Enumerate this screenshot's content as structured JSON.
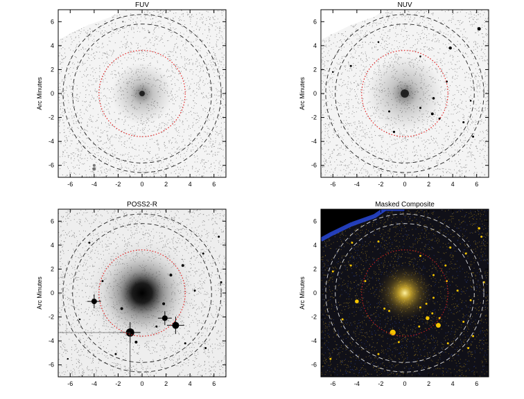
{
  "chart_data": [
    {
      "type": "image",
      "title": "FUV",
      "ylabel": "Arc Minutes",
      "xlabel": "",
      "xlim": [
        -7,
        7
      ],
      "ylim": [
        -7,
        7
      ],
      "xticks": [
        "-6",
        "-4",
        "-2",
        "0",
        "2",
        "4",
        "6"
      ],
      "yticks": [
        "-6",
        "-4",
        "-2",
        "0",
        "2",
        "4",
        "6"
      ],
      "circle_radii_arcmin": {
        "inner_red_dotted": 3.6,
        "dashed_1": 5.8,
        "dashed_2": 6.6
      },
      "colors": {
        "background": "#f4f4f4",
        "ink": "#000000",
        "red_circle": "#e02020",
        "dashed": "#222222"
      }
    },
    {
      "type": "image",
      "title": "NUV",
      "ylabel": "Arc Minutes",
      "xlabel": "",
      "xlim": [
        -7,
        7
      ],
      "ylim": [
        -7,
        7
      ],
      "xticks": [
        "-6",
        "-4",
        "-2",
        "0",
        "2",
        "4",
        "6"
      ],
      "yticks": [
        "-6",
        "-4",
        "-2",
        "0",
        "2",
        "4",
        "6"
      ],
      "circle_radii_arcmin": {
        "inner_red_dotted": 3.6,
        "dashed_1": 5.8,
        "dashed_2": 6.6
      },
      "colors": {
        "background": "#f4f4f4",
        "ink": "#000000",
        "red_circle": "#e02020",
        "dashed": "#222222"
      }
    },
    {
      "type": "image",
      "title": "POSS2-R",
      "ylabel": "Arc Minutes",
      "xlabel": "",
      "xlim": [
        -7,
        7
      ],
      "ylim": [
        -7,
        7
      ],
      "xticks": [
        "-6",
        "-4",
        "-2",
        "0",
        "2",
        "4",
        "6"
      ],
      "yticks": [
        "-6",
        "-4",
        "-2",
        "0",
        "2",
        "4",
        "6"
      ],
      "circle_radii_arcmin": {
        "inner_red_dotted": 3.6,
        "dashed_1": 5.8,
        "dashed_2": 6.6
      },
      "colors": {
        "background": "#eeeeee",
        "ink": "#000000",
        "red_circle": "#e02020",
        "dashed": "#222222"
      }
    },
    {
      "type": "image",
      "title": "Masked Composite",
      "ylabel": "Arc Minutes",
      "xlabel": "",
      "xlim": [
        -7,
        7
      ],
      "ylim": [
        -7,
        7
      ],
      "xticks": [
        "-6",
        "-4",
        "-2",
        "0",
        "2",
        "4",
        "6"
      ],
      "yticks": [
        "-6",
        "-4",
        "-2",
        "0",
        "2",
        "4",
        "6"
      ],
      "circle_radii_arcmin": {
        "inner_red_dotted": 3.6,
        "dashed_1": 5.8,
        "dashed_2": 6.6
      },
      "colors": {
        "background": "#101018",
        "ink": "#000000",
        "red_circle": "#c02020",
        "dashed": "#dddddd",
        "stars": "#f5c400",
        "mask_edge": "#2848d8"
      }
    }
  ]
}
